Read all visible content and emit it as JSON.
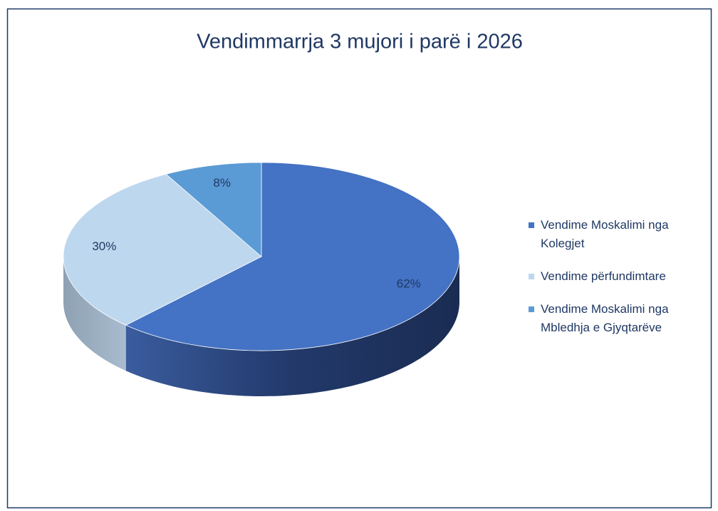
{
  "chart_data": {
    "type": "pie",
    "title": "Vendimmarrja 3 mujori i parë i 2026",
    "categories": [
      "Vendime Moskalimi nga Kolegjet",
      "Vendime përfundimtare",
      "Vendime Moskalimi nga Mbledhja e Gjyqtarëve"
    ],
    "values": [
      62,
      30,
      8
    ],
    "value_labels": [
      "62%",
      "30%",
      "8%"
    ],
    "colors": [
      "#4472c4",
      "#bdd7ee",
      "#5b9bd5"
    ],
    "legend": "right"
  }
}
